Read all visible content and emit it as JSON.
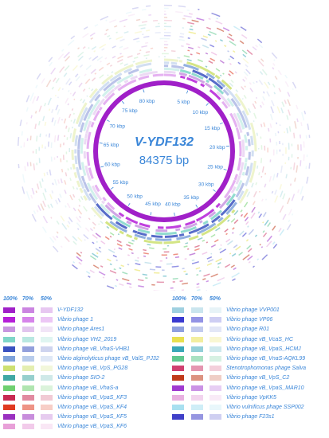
{
  "genome": {
    "name": "V-YDF132",
    "size_label": "84375 bp",
    "tick_labels": [
      "5 kbp",
      "10 kbp",
      "15 kbp",
      "20 kbp",
      "25 kbp",
      "30 kbp",
      "35 kbp",
      "40 kbp",
      "45 kbp",
      "50 kbp",
      "55 kbp",
      "60 kbp",
      "65 kbp",
      "70 kbp",
      "75 kbp",
      "80 kbp"
    ]
  },
  "legend": {
    "header": [
      "100%",
      "70%",
      "50%"
    ],
    "left": [
      {
        "label": "V-YDF132",
        "color": "#a020c8"
      },
      {
        "label": "Vibrio phage 1",
        "color": "#b51fd8"
      },
      {
        "label": "Vibrio phage Ares1",
        "color": "#c896e0"
      },
      {
        "label": "Vibrio phage VH2_2019",
        "color": "#7fd6c8"
      },
      {
        "label": "Vibrio phage vB_VhaS-VHB1",
        "color": "#3a52c0"
      },
      {
        "label": "Vibrio alginolyticus phage vB_ValS_PJ32",
        "color": "#7ea2da"
      },
      {
        "label": "Vibrio phage vB_VpS_PG28",
        "color": "#cde070"
      },
      {
        "label": "Vibrio phage SIO-2",
        "color": "#3fa8a4"
      },
      {
        "label": "Vibrio phage vB_VhaS-a",
        "color": "#6fd070"
      },
      {
        "label": "Vibrio phage vB_VpaS_KF3",
        "color": "#c82a52"
      },
      {
        "label": "Vibrio phage vB_VpaS_KF4",
        "color": "#e03a20"
      },
      {
        "label": "Vibrio phage vB_VpaS_KF5",
        "color": "#9a30c0"
      },
      {
        "label": "Vibrio phage vB_VpaS_KF6",
        "color": "#e8a0d8"
      }
    ],
    "right": [
      {
        "label": "Vibrio phage VVP001",
        "color": "#9fd0e0"
      },
      {
        "label": "Vibrio phage VP06",
        "color": "#3a3ad0"
      },
      {
        "label": "Vibrio phage R01",
        "color": "#8fa0e0"
      },
      {
        "label": "Vibrio phage vB_VcaS_HC",
        "color": "#e8e050"
      },
      {
        "label": "Vibrio phage vB_VpaS_HCMJ",
        "color": "#3aa8b8"
      },
      {
        "label": "Vibrio phage vB_VnaS-AQKL99",
        "color": "#60c890"
      },
      {
        "label": "Stenotrophomonas phage Salva",
        "color": "#d04070"
      },
      {
        "label": "Vibrio phage vB_VpS_C2",
        "color": "#c03a1a"
      },
      {
        "label": "Vibrio phage vB_VpaS_MAR10",
        "color": "#a03ad0"
      },
      {
        "label": "Vibrio phage VpKK5",
        "color": "#e8b0e0"
      },
      {
        "label": "Vibrio vulnificus phage SSP002",
        "color": "#a8e0f0"
      },
      {
        "label": "Vibrio phage F23s1",
        "color": "#4040c8"
      }
    ]
  }
}
